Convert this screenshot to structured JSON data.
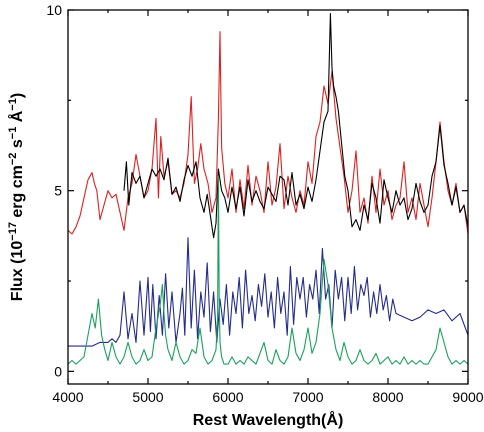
{
  "chart_data": {
    "type": "line",
    "title": "",
    "xlabel": "Rest Wavelength(Å)",
    "ylabel": {
      "prefix": "Flux (10",
      "exp1": "−17",
      "mid1": " erg cm",
      "exp2": "−2",
      "mid2": " s",
      "exp3": "−1",
      "mid3": " Å",
      "exp4": "−1",
      "suffix": ")"
    },
    "xlim": [
      4000,
      9000
    ],
    "ylim": [
      -0.35,
      10
    ],
    "x_ticks": [
      4000,
      5000,
      6000,
      7000,
      8000,
      9000
    ],
    "x_tick_labels": [
      "4000",
      "5000",
      "6000",
      "7000",
      "8000",
      "9000"
    ],
    "y_ticks": [
      0,
      5,
      10
    ],
    "y_tick_labels": [
      "0",
      "5",
      "10"
    ],
    "grid": false,
    "legend": "none",
    "series": [
      {
        "color": "#dd2020",
        "x": [
          4000,
          4050,
          4100,
          4150,
          4200,
          4250,
          4300,
          4330,
          4360,
          4400,
          4450,
          4500,
          4550,
          4600,
          4650,
          4700,
          4750,
          4800,
          4850,
          4900,
          4950,
          5000,
          5050,
          5100,
          5130,
          5160,
          5200,
          5250,
          5300,
          5350,
          5400,
          5450,
          5500,
          5540,
          5580,
          5620,
          5660,
          5700,
          5750,
          5800,
          5850,
          5880,
          5900,
          5920,
          5960,
          6000,
          6050,
          6100,
          6150,
          6200,
          6250,
          6300,
          6350,
          6400,
          6450,
          6500,
          6550,
          6600,
          6650,
          6700,
          6750,
          6800,
          6850,
          6900,
          6950,
          7000,
          7050,
          7100,
          7150,
          7200,
          7250,
          7300,
          7350,
          7400,
          7450,
          7500,
          7550,
          7600,
          7650,
          7700,
          7750,
          7800,
          7850,
          7900,
          7950,
          8000,
          8050,
          8100,
          8150,
          8200,
          8250,
          8300,
          8350,
          8400,
          8450,
          8500,
          8550,
          8600,
          8650,
          8700,
          8750,
          8800,
          8850,
          8900,
          8950,
          9000
        ],
        "y": [
          3.9,
          3.8,
          4.0,
          4.3,
          4.8,
          5.3,
          5.5,
          5.2,
          5.0,
          4.2,
          4.6,
          5.0,
          4.8,
          4.9,
          4.4,
          3.9,
          4.8,
          5.2,
          6.0,
          5.4,
          4.8,
          5.0,
          5.6,
          7.0,
          4.8,
          6.5,
          5.4,
          5.8,
          4.9,
          5.0,
          4.8,
          5.2,
          6.0,
          7.6,
          5.2,
          5.6,
          6.3,
          5.6,
          5.2,
          4.4,
          4.8,
          7.0,
          9.4,
          6.2,
          5.2,
          4.8,
          5.6,
          4.4,
          5.3,
          4.5,
          5.7,
          4.6,
          5.4,
          5.0,
          4.4,
          5.8,
          4.6,
          5.1,
          6.3,
          4.5,
          5.4,
          4.8,
          4.4,
          5.0,
          4.6,
          5.8,
          5.2,
          6.5,
          6.9,
          7.9,
          7.4,
          8.3,
          7.0,
          6.2,
          5.4,
          4.4,
          5.0,
          6.1,
          4.4,
          4.8,
          4.1,
          5.4,
          4.4,
          5.6,
          4.6,
          5.0,
          4.2,
          4.6,
          4.8,
          5.8,
          4.4,
          4.8,
          4.2,
          5.2,
          4.6,
          4.0,
          4.8,
          5.8,
          6.9,
          5.8,
          5.0,
          4.6,
          5.2,
          4.4,
          4.6,
          3.8
        ]
      },
      {
        "color": "#000000",
        "x": [
          4700,
          4730,
          4760,
          4800,
          4850,
          4900,
          4950,
          5000,
          5050,
          5100,
          5150,
          5200,
          5250,
          5300,
          5350,
          5400,
          5450,
          5500,
          5550,
          5600,
          5650,
          5700,
          5740,
          5780,
          5820,
          5850,
          5880,
          5920,
          5960,
          6000,
          6050,
          6100,
          6150,
          6200,
          6250,
          6300,
          6350,
          6400,
          6450,
          6500,
          6550,
          6600,
          6650,
          6700,
          6750,
          6800,
          6850,
          6900,
          6950,
          7000,
          7050,
          7100,
          7150,
          7200,
          7250,
          7280,
          7300,
          7320,
          7350,
          7380,
          7420,
          7460,
          7500,
          7550,
          7600,
          7650,
          7700,
          7750,
          7800,
          7850,
          7900,
          7950,
          8000,
          8050,
          8100,
          8150,
          8200,
          8250,
          8300,
          8350,
          8400,
          8450,
          8500,
          8550,
          8600,
          8650,
          8700,
          8750,
          8800,
          8850,
          8900,
          8950,
          9000
        ],
        "y": [
          5.0,
          5.8,
          4.6,
          5.5,
          5.2,
          5.4,
          4.8,
          5.2,
          5.6,
          5.4,
          5.6,
          5.3,
          5.9,
          4.9,
          5.1,
          4.7,
          5.3,
          5.7,
          5.4,
          5.8,
          4.8,
          4.4,
          4.9,
          4.3,
          3.7,
          4.1,
          5.6,
          5.0,
          4.8,
          4.4,
          5.1,
          4.5,
          5.1,
          4.3,
          5.3,
          4.7,
          5.0,
          4.7,
          4.5,
          5.1,
          4.9,
          4.7,
          5.4,
          5.3,
          4.6,
          5.5,
          4.6,
          4.9,
          4.5,
          5.1,
          4.7,
          5.3,
          6.1,
          6.9,
          7.2,
          9.9,
          8.4,
          7.9,
          7.6,
          7.2,
          6.3,
          5.4,
          5.0,
          4.0,
          4.2,
          3.9,
          4.6,
          4.2,
          5.2,
          4.8,
          4.1,
          5.3,
          4.8,
          4.4,
          5.0,
          4.6,
          4.8,
          4.2,
          4.5,
          5.2,
          4.7,
          4.4,
          4.6,
          5.4,
          5.8,
          6.8,
          5.7,
          5.2,
          4.6,
          5.1,
          4.4,
          4.6,
          4.0
        ]
      },
      {
        "color": "#232b8c",
        "x": [
          4000,
          4100,
          4200,
          4300,
          4400,
          4500,
          4550,
          4600,
          4650,
          4700,
          4750,
          4800,
          4850,
          4900,
          4950,
          5000,
          5030,
          5060,
          5100,
          5140,
          5180,
          5220,
          5260,
          5300,
          5350,
          5400,
          5430,
          5460,
          5500,
          5540,
          5580,
          5620,
          5660,
          5700,
          5740,
          5780,
          5820,
          5860,
          5900,
          5940,
          5980,
          6020,
          6060,
          6100,
          6140,
          6180,
          6220,
          6260,
          6300,
          6340,
          6380,
          6420,
          6460,
          6500,
          6540,
          6580,
          6620,
          6660,
          6700,
          6740,
          6780,
          6820,
          6860,
          6900,
          6940,
          6980,
          7020,
          7060,
          7100,
          7140,
          7180,
          7220,
          7260,
          7300,
          7340,
          7380,
          7420,
          7460,
          7500,
          7540,
          7580,
          7620,
          7660,
          7700,
          7740,
          7780,
          7820,
          7860,
          7900,
          7940,
          7980,
          8020,
          8060,
          8100,
          8200,
          8300,
          8400,
          8500,
          8600,
          8700,
          8800,
          8900,
          9000
        ],
        "y": [
          0.7,
          0.7,
          0.7,
          0.7,
          0.8,
          0.8,
          0.9,
          0.8,
          1.0,
          2.2,
          0.9,
          1.6,
          0.8,
          2.5,
          1.0,
          2.6,
          1.1,
          2.4,
          0.9,
          2.1,
          1.0,
          2.7,
          1.2,
          2.2,
          0.8,
          1.6,
          2.3,
          1.0,
          3.7,
          1.2,
          2.8,
          0.9,
          2.2,
          1.5,
          3.0,
          1.1,
          2.2,
          0.8,
          2.0,
          1.3,
          2.4,
          1.0,
          2.2,
          1.6,
          2.6,
          1.2,
          2.8,
          1.6,
          2.1,
          1.4,
          2.4,
          1.8,
          2.7,
          1.5,
          2.2,
          1.2,
          2.6,
          1.6,
          2.2,
          1.0,
          2.9,
          1.3,
          2.6,
          2.0,
          2.6,
          1.5,
          2.4,
          2.0,
          2.8,
          1.6,
          3.4,
          2.0,
          2.4,
          1.2,
          2.8,
          2.0,
          2.6,
          1.4,
          2.6,
          1.6,
          2.9,
          1.7,
          2.4,
          2.1,
          2.6,
          1.5,
          2.2,
          1.6,
          2.4,
          1.7,
          2.1,
          1.4,
          2.0,
          1.6,
          1.5,
          1.4,
          1.5,
          1.7,
          1.6,
          1.7,
          1.4,
          1.6,
          1.0
        ]
      },
      {
        "color": "#1aa05a",
        "x": [
          4000,
          4050,
          4100,
          4150,
          4200,
          4250,
          4300,
          4340,
          4380,
          4420,
          4460,
          4500,
          4550,
          4600,
          4650,
          4700,
          4750,
          4800,
          4850,
          4900,
          4950,
          5000,
          5050,
          5100,
          5150,
          5180,
          5200,
          5220,
          5250,
          5300,
          5350,
          5400,
          5450,
          5500,
          5550,
          5600,
          5650,
          5700,
          5750,
          5800,
          5850,
          5870,
          5880,
          5890,
          5900,
          5920,
          5950,
          6000,
          6050,
          6100,
          6150,
          6200,
          6250,
          6300,
          6350,
          6400,
          6450,
          6500,
          6550,
          6600,
          6650,
          6700,
          6750,
          6800,
          6850,
          6900,
          6950,
          7000,
          7050,
          7100,
          7150,
          7200,
          7250,
          7300,
          7350,
          7400,
          7450,
          7500,
          7550,
          7600,
          7650,
          7700,
          7750,
          7800,
          7850,
          7900,
          7950,
          8000,
          8050,
          8100,
          8150,
          8200,
          8250,
          8300,
          8350,
          8400,
          8450,
          8500,
          8550,
          8600,
          8650,
          8700,
          8750,
          8800,
          8850,
          8900,
          8950,
          9000
        ],
        "y": [
          0.2,
          0.3,
          0.2,
          0.3,
          0.4,
          1.0,
          1.6,
          1.2,
          2.0,
          1.0,
          0.6,
          0.3,
          0.8,
          0.4,
          0.2,
          0.4,
          0.8,
          0.4,
          0.2,
          0.3,
          0.6,
          0.3,
          0.4,
          1.2,
          1.8,
          2.4,
          1.6,
          1.0,
          0.6,
          0.3,
          0.8,
          0.4,
          0.2,
          0.3,
          0.6,
          0.5,
          1.2,
          0.4,
          0.2,
          0.3,
          0.6,
          1.5,
          5.4,
          2.0,
          0.8,
          0.4,
          0.2,
          0.2,
          0.4,
          0.2,
          0.3,
          0.2,
          0.4,
          0.3,
          0.2,
          0.5,
          0.8,
          0.3,
          0.2,
          0.6,
          0.3,
          0.2,
          0.4,
          1.2,
          0.5,
          0.3,
          0.6,
          1.2,
          0.5,
          0.8,
          1.6,
          3.1,
          2.4,
          1.2,
          0.6,
          0.3,
          0.8,
          0.4,
          0.2,
          0.3,
          0.6,
          0.3,
          0.2,
          0.3,
          0.5,
          0.2,
          0.3,
          0.4,
          0.2,
          0.3,
          0.2,
          0.4,
          0.2,
          0.3,
          0.2,
          0.3,
          0.2,
          0.2,
          0.4,
          0.6,
          1.2,
          0.8,
          0.4,
          0.2,
          0.3,
          0.2,
          0.3,
          0.2
        ]
      }
    ]
  }
}
